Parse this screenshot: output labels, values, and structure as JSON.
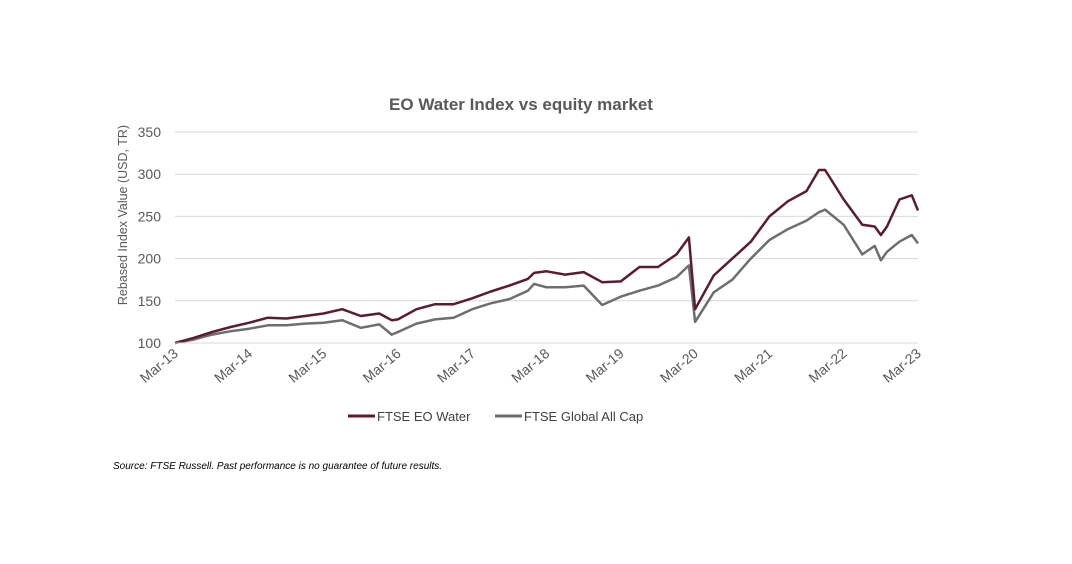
{
  "chart_data": {
    "type": "line",
    "title": "EO Water Index vs equity market",
    "ylabel": "Rebased Index Value (USD, TR)",
    "xlabel": "",
    "ylim": [
      100,
      350
    ],
    "yticks": [
      100,
      150,
      200,
      250,
      300,
      350
    ],
    "x_tick_labels": [
      "Mar-13",
      "Mar-14",
      "Mar-15",
      "Mar-16",
      "Mar-17",
      "Mar-18",
      "Mar-19",
      "Mar-20",
      "Mar-21",
      "Mar-22",
      "Mar-23"
    ],
    "grid": "horizontal",
    "legend_position": "bottom",
    "x": [
      "Mar-13",
      "Jun-13",
      "Sep-13",
      "Dec-13",
      "Mar-14",
      "Jun-14",
      "Sep-14",
      "Dec-14",
      "Mar-15",
      "Jun-15",
      "Sep-15",
      "Dec-15",
      "Feb-16",
      "Mar-16",
      "Jun-16",
      "Sep-16",
      "Dec-16",
      "Mar-17",
      "Jun-17",
      "Sep-17",
      "Dec-17",
      "Jan-18",
      "Mar-18",
      "Jun-18",
      "Sep-18",
      "Dec-18",
      "Mar-19",
      "Jun-19",
      "Sep-19",
      "Dec-19",
      "Feb-20",
      "Mar-20",
      "Jun-20",
      "Sep-20",
      "Dec-20",
      "Mar-21",
      "Jun-21",
      "Sep-21",
      "Nov-21",
      "Dec-21",
      "Mar-22",
      "Jun-22",
      "Aug-22",
      "Sep-22",
      "Oct-22",
      "Dec-22",
      "Feb-23",
      "Mar-23"
    ],
    "series": [
      {
        "name": "FTSE EO Water",
        "color": "#5c1a33",
        "values": [
          100,
          106,
          113,
          119,
          124,
          130,
          129,
          132,
          135,
          140,
          132,
          135,
          127,
          128,
          140,
          146,
          146,
          153,
          161,
          168,
          176,
          183,
          185,
          181,
          184,
          172,
          173,
          190,
          190,
          205,
          225,
          140,
          180,
          200,
          220,
          250,
          268,
          280,
          305,
          305,
          270,
          240,
          238,
          228,
          238,
          270,
          275,
          257
        ]
      },
      {
        "name": "FTSE Global All Cap",
        "color": "#6e6e6e",
        "values": [
          100,
          104,
          110,
          114,
          117,
          121,
          121,
          123,
          124,
          127,
          118,
          122,
          110,
          113,
          123,
          128,
          130,
          140,
          147,
          152,
          162,
          170,
          166,
          166,
          168,
          145,
          155,
          162,
          168,
          178,
          192,
          125,
          160,
          175,
          200,
          222,
          235,
          245,
          255,
          258,
          240,
          205,
          215,
          198,
          208,
          220,
          228,
          218
        ]
      }
    ]
  },
  "source_note": "Source: FTSE Russell. Past performance is no guarantee of future results."
}
